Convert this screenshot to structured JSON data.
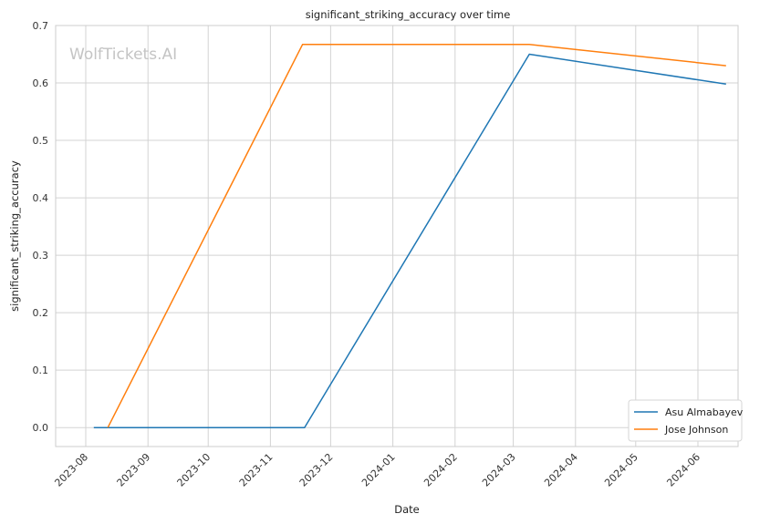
{
  "chart_data": {
    "type": "line",
    "title": "significant_striking_accuracy over time",
    "xlabel": "Date",
    "ylabel": "significant_striking_accuracy",
    "watermark": "WolfTickets.AI",
    "x_ticks": [
      "2023-08",
      "2023-09",
      "2023-10",
      "2023-11",
      "2023-12",
      "2024-01",
      "2024-02",
      "2024-03",
      "2024-04",
      "2024-05",
      "2024-06"
    ],
    "y_ticks": [
      "0.0",
      "0.1",
      "0.2",
      "0.3",
      "0.4",
      "0.5",
      "0.6",
      "0.7"
    ],
    "ylim": [
      -0.033,
      0.7
    ],
    "xlim": [
      "2023-07-17",
      "2024-06-21"
    ],
    "grid": true,
    "legend_position": "bottom-right",
    "series": [
      {
        "name": "Asu Almabayev",
        "color": "#1f77b4",
        "points": [
          {
            "x": "2023-08-05",
            "y": 0.0
          },
          {
            "x": "2023-11-18",
            "y": 0.0
          },
          {
            "x": "2024-03-09",
            "y": 0.65
          },
          {
            "x": "2024-06-15",
            "y": 0.598
          }
        ]
      },
      {
        "name": "Jose Johnson",
        "color": "#ff7f0e",
        "points": [
          {
            "x": "2023-08-12",
            "y": 0.0
          },
          {
            "x": "2023-11-17",
            "y": 0.667
          },
          {
            "x": "2024-03-09",
            "y": 0.667
          },
          {
            "x": "2024-06-15",
            "y": 0.63
          }
        ]
      }
    ]
  }
}
